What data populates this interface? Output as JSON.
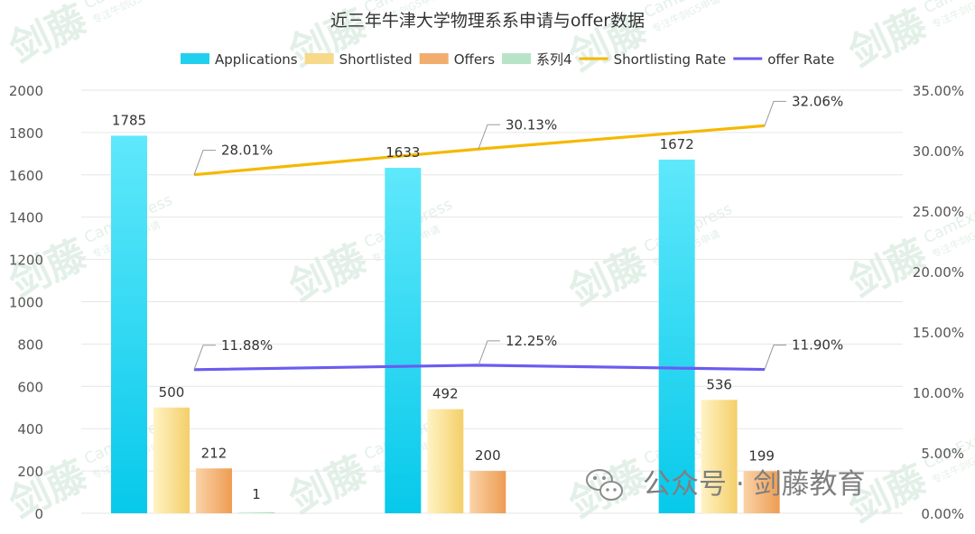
{
  "chart_data": {
    "type": "bar",
    "title": "近三年牛津大学物理系系申请与offer数据",
    "categories": [
      "",
      "",
      ""
    ],
    "series": [
      {
        "name": "Applications",
        "kind": "bar",
        "axis": "left",
        "color": "#22d0ee",
        "values": [
          1785,
          1633,
          1672
        ],
        "labels": [
          "1785",
          "1633",
          "1672"
        ]
      },
      {
        "name": "Shortlisted",
        "kind": "bar",
        "axis": "left",
        "color": "#f6d989",
        "values": [
          500,
          492,
          536
        ],
        "labels": [
          "500",
          "492",
          "536"
        ]
      },
      {
        "name": "Offers",
        "kind": "bar",
        "axis": "left",
        "color": "#f2ad6e",
        "values": [
          212,
          200,
          199
        ],
        "labels": [
          "212",
          "200",
          "199"
        ]
      },
      {
        "name": "系列4",
        "kind": "bar",
        "axis": "left",
        "color": "#b7e4c7",
        "values": [
          1,
          null,
          null
        ],
        "labels": [
          "1",
          "",
          ""
        ]
      },
      {
        "name": "Shortlisting Rate",
        "kind": "line",
        "axis": "right",
        "color": "#f5b800",
        "values": [
          28.01,
          30.13,
          32.06
        ],
        "labels": [
          "28.01%",
          "30.13%",
          "32.06%"
        ]
      },
      {
        "name": "offer Rate",
        "kind": "line",
        "axis": "right",
        "color": "#6a5cf0",
        "values": [
          11.88,
          12.25,
          11.9
        ],
        "labels": [
          "11.88%",
          "12.25%",
          "11.90%"
        ]
      }
    ],
    "y_left": {
      "min": 0,
      "max": 2000,
      "ticks": [
        "0",
        "200",
        "400",
        "600",
        "800",
        "1000",
        "1200",
        "1400",
        "1600",
        "1800",
        "2000"
      ]
    },
    "y_right": {
      "min": 0,
      "max": 35,
      "ticks": [
        "0.00%",
        "5.00%",
        "10.00%",
        "15.00%",
        "20.00%",
        "25.00%",
        "30.00%",
        "35.00%"
      ]
    },
    "grid": true,
    "legend_position": "top"
  },
  "watermark": {
    "text_cn": "剑藤",
    "text_en": "CamExpress",
    "text_small": "专注牛剑G5申请",
    "color": "#e3f0e8"
  },
  "wechat_badge": {
    "text": "公众号 · 剑藤教育",
    "icon": "wechat-icon"
  }
}
